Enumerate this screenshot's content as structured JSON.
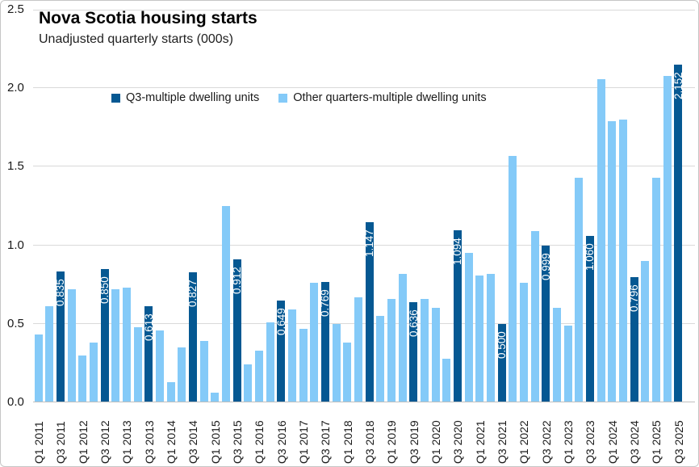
{
  "header": {
    "title": "Nova Scotia housing starts",
    "subtitle": "Unadjusted quarterly starts (000s)"
  },
  "legend": {
    "q3_label": "Q3-multiple dwelling units",
    "other_label": "Other quarters-multiple dwelling units"
  },
  "colors": {
    "q3_bar": "#055892",
    "other_bar": "#84caf8",
    "gridline": "#d9d9d9",
    "axis_line": "#bfbfbf",
    "bar_label_text": "#ffffff"
  },
  "chart_data": {
    "type": "bar",
    "title": "Nova Scotia housing starts",
    "subtitle": "Unadjusted quarterly starts (000s)",
    "xlabel": "",
    "ylabel": "",
    "ylim": [
      0,
      2.5
    ],
    "yticks": [
      "0.0",
      "0.5",
      "1.0",
      "1.5",
      "2.0",
      "2.5"
    ],
    "grid": "horizontal",
    "legend_position": "top-center",
    "xtick_every": 2,
    "series_names": [
      "Q3-multiple dwelling units",
      "Other quarters-multiple dwelling units"
    ],
    "bars": [
      {
        "quarter": "Q1 2011",
        "value": 0.43,
        "series": "other"
      },
      {
        "quarter": "Q2 2011",
        "value": 0.61,
        "series": "other"
      },
      {
        "quarter": "Q3 2011",
        "value": 0.835,
        "series": "q3",
        "label": "0.835"
      },
      {
        "quarter": "Q4 2011",
        "value": 0.72,
        "series": "other"
      },
      {
        "quarter": "Q1 2012",
        "value": 0.3,
        "series": "other"
      },
      {
        "quarter": "Q2 2012",
        "value": 0.38,
        "series": "other"
      },
      {
        "quarter": "Q3 2012",
        "value": 0.85,
        "series": "q3",
        "label": "0.850"
      },
      {
        "quarter": "Q4 2012",
        "value": 0.72,
        "series": "other"
      },
      {
        "quarter": "Q1 2013",
        "value": 0.73,
        "series": "other"
      },
      {
        "quarter": "Q2 2013",
        "value": 0.48,
        "series": "other"
      },
      {
        "quarter": "Q3 2013",
        "value": 0.613,
        "series": "q3",
        "label": "0.613"
      },
      {
        "quarter": "Q4 2013",
        "value": 0.46,
        "series": "other"
      },
      {
        "quarter": "Q1 2014",
        "value": 0.13,
        "series": "other"
      },
      {
        "quarter": "Q2 2014",
        "value": 0.35,
        "series": "other"
      },
      {
        "quarter": "Q3 2014",
        "value": 0.827,
        "series": "q3",
        "label": "0.827"
      },
      {
        "quarter": "Q4 2014",
        "value": 0.39,
        "series": "other"
      },
      {
        "quarter": "Q1 2015",
        "value": 0.06,
        "series": "other"
      },
      {
        "quarter": "Q2 2015",
        "value": 1.25,
        "series": "other"
      },
      {
        "quarter": "Q3 2015",
        "value": 0.912,
        "series": "q3",
        "label": "0.912"
      },
      {
        "quarter": "Q4 2015",
        "value": 0.24,
        "series": "other"
      },
      {
        "quarter": "Q1 2016",
        "value": 0.33,
        "series": "other"
      },
      {
        "quarter": "Q2 2016",
        "value": 0.51,
        "series": "other"
      },
      {
        "quarter": "Q3 2016",
        "value": 0.649,
        "series": "q3",
        "label": "0.649"
      },
      {
        "quarter": "Q4 2016",
        "value": 0.59,
        "series": "other"
      },
      {
        "quarter": "Q1 2017",
        "value": 0.47,
        "series": "other"
      },
      {
        "quarter": "Q2 2017",
        "value": 0.76,
        "series": "other"
      },
      {
        "quarter": "Q3 2017",
        "value": 0.769,
        "series": "q3",
        "label": "0.769"
      },
      {
        "quarter": "Q4 2017",
        "value": 0.5,
        "series": "other"
      },
      {
        "quarter": "Q1 2018",
        "value": 0.38,
        "series": "other"
      },
      {
        "quarter": "Q2 2018",
        "value": 0.67,
        "series": "other"
      },
      {
        "quarter": "Q3 2018",
        "value": 1.147,
        "series": "q3",
        "label": "1.147"
      },
      {
        "quarter": "Q4 2018",
        "value": 0.55,
        "series": "other"
      },
      {
        "quarter": "Q1 2019",
        "value": 0.66,
        "series": "other"
      },
      {
        "quarter": "Q2 2019",
        "value": 0.82,
        "series": "other"
      },
      {
        "quarter": "Q3 2019",
        "value": 0.636,
        "series": "q3",
        "label": "0.636"
      },
      {
        "quarter": "Q4 2019",
        "value": 0.66,
        "series": "other"
      },
      {
        "quarter": "Q1 2020",
        "value": 0.6,
        "series": "other"
      },
      {
        "quarter": "Q2 2020",
        "value": 0.28,
        "series": "other"
      },
      {
        "quarter": "Q3 2020",
        "value": 1.094,
        "series": "q3",
        "label": "1.094"
      },
      {
        "quarter": "Q4 2020",
        "value": 0.95,
        "series": "other"
      },
      {
        "quarter": "Q1 2021",
        "value": 0.81,
        "series": "other"
      },
      {
        "quarter": "Q2 2021",
        "value": 0.82,
        "series": "other"
      },
      {
        "quarter": "Q3 2021",
        "value": 0.5,
        "series": "q3",
        "label": "0.500"
      },
      {
        "quarter": "Q4 2021",
        "value": 1.57,
        "series": "other"
      },
      {
        "quarter": "Q1 2022",
        "value": 0.76,
        "series": "other"
      },
      {
        "quarter": "Q2 2022",
        "value": 1.09,
        "series": "other"
      },
      {
        "quarter": "Q3 2022",
        "value": 0.999,
        "series": "q3",
        "label": "0.999"
      },
      {
        "quarter": "Q4 2022",
        "value": 0.6,
        "series": "other"
      },
      {
        "quarter": "Q1 2023",
        "value": 0.49,
        "series": "other"
      },
      {
        "quarter": "Q2 2023",
        "value": 1.43,
        "series": "other"
      },
      {
        "quarter": "Q3 2023",
        "value": 1.06,
        "series": "q3",
        "label": "1.060"
      },
      {
        "quarter": "Q4 2023",
        "value": 2.06,
        "series": "other"
      },
      {
        "quarter": "Q1 2024",
        "value": 1.79,
        "series": "other"
      },
      {
        "quarter": "Q2 2024",
        "value": 1.8,
        "series": "other"
      },
      {
        "quarter": "Q3 2024",
        "value": 0.796,
        "series": "q3",
        "label": "0.796"
      },
      {
        "quarter": "Q4 2024",
        "value": 0.9,
        "series": "other"
      },
      {
        "quarter": "Q1 2025",
        "value": 1.43,
        "series": "other"
      },
      {
        "quarter": "Q2 2025",
        "value": 2.08,
        "series": "other"
      },
      {
        "quarter": "Q3 2025",
        "value": 2.152,
        "series": "q3",
        "label": "2.152"
      }
    ]
  }
}
